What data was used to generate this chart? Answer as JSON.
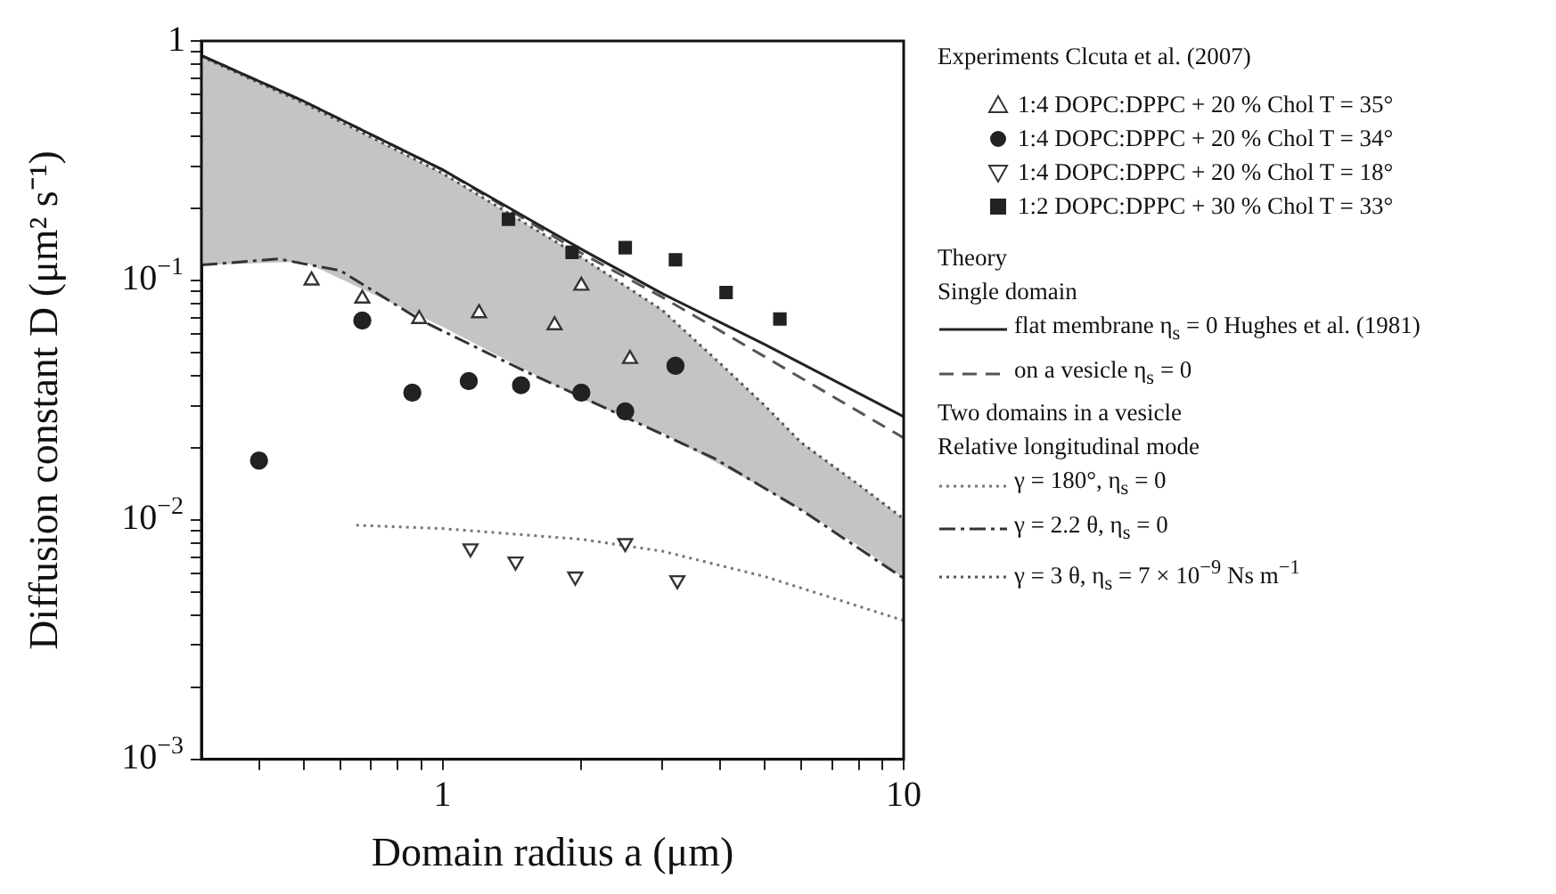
{
  "chart_data": {
    "type": "scatter",
    "xlabel": "Domain radius a (μm)",
    "ylabel": "Diffusion constant D (μm² s⁻¹)",
    "log": "xy",
    "xlim": [
      0.3,
      10
    ],
    "ylim": [
      0.001,
      1
    ],
    "xticks": [
      {
        "value": 0.4,
        "label": null
      },
      {
        "value": 0.5,
        "label": null
      },
      {
        "value": 0.6,
        "label": null
      },
      {
        "value": 0.7,
        "label": null
      },
      {
        "value": 0.8,
        "label": null
      },
      {
        "value": 0.9,
        "label": null
      },
      1,
      {
        "value": 2,
        "label": null
      },
      {
        "value": 3,
        "label": null
      },
      {
        "value": 4,
        "label": null
      },
      {
        "value": 5,
        "label": null
      },
      {
        "value": 6,
        "label": null
      },
      {
        "value": 7,
        "label": null
      },
      {
        "value": 8,
        "label": null
      },
      {
        "value": 9,
        "label": null
      },
      10
    ],
    "yticks": [
      {
        "value": 0.001,
        "label": "10$^{−3}$"
      },
      {
        "value": 0.002,
        "label": null
      },
      {
        "value": 0.003,
        "label": null
      },
      {
        "value": 0.004,
        "label": null
      },
      {
        "value": 0.005,
        "label": null
      },
      {
        "value": 0.006,
        "label": null
      },
      {
        "value": 0.007,
        "label": null
      },
      {
        "value": 0.008,
        "label": null
      },
      {
        "value": 0.009,
        "label": null
      },
      {
        "value": 0.01,
        "label": "10$^{−2}$"
      },
      {
        "value": 0.02,
        "label": null
      },
      {
        "value": 0.03,
        "label": null
      },
      {
        "value": 0.04,
        "label": null
      },
      {
        "value": 0.05,
        "label": null
      },
      {
        "value": 0.06,
        "label": null
      },
      {
        "value": 0.07,
        "label": null
      },
      {
        "value": 0.08,
        "label": null
      },
      {
        "value": 0.09,
        "label": null
      },
      {
        "value": 0.1,
        "label": "10$^{−1}$"
      },
      {
        "value": 0.2,
        "label": null
      },
      {
        "value": 0.3,
        "label": null
      },
      {
        "value": 0.4,
        "label": null
      },
      {
        "value": 0.5,
        "label": null
      },
      {
        "value": 0.6,
        "label": null
      },
      {
        "value": 0.7,
        "label": null
      },
      {
        "value": 0.8,
        "label": null
      },
      {
        "value": 0.9,
        "label": null
      },
      1
    ],
    "grid": false,
    "legend": "right",
    "annotations": [
      "Experiments Clcuta et al. (2007)",
      "Theory",
      "Single domain",
      "Two domains in a vesicle",
      "Relative longitudinal mode"
    ],
    "series": [
      {
        "name": "1:4 DOPC:DPPC + 20 % Chol T = 35°",
        "type": "scatter",
        "marker": "triangle",
        "color": "#333333",
        "x": [
          0.52,
          0.67,
          0.89,
          1.2,
          1.75,
          2.0,
          2.55
        ],
        "values": [
          0.1,
          0.084,
          0.069,
          0.073,
          0.065,
          0.095,
          0.047
        ]
      },
      {
        "name": "1:4 DOPC:DPPC + 20 % Chol T = 34°",
        "type": "scatter",
        "marker": "circle",
        "color": "#222222",
        "x": [
          0.4,
          0.67,
          0.86,
          1.14,
          1.48,
          2.0,
          2.49,
          3.2
        ],
        "values": [
          0.0177,
          0.068,
          0.034,
          0.038,
          0.0365,
          0.034,
          0.0284,
          0.044
        ]
      },
      {
        "name": "1:4 DOPC:DPPC + 20 % Chol T = 18°",
        "type": "scatter",
        "marker": "triangle_down",
        "color": "#333333",
        "x": [
          1.15,
          1.44,
          1.94,
          2.49,
          3.23
        ],
        "values": [
          0.0076,
          0.0067,
          0.0058,
          0.008,
          0.0056
        ]
      },
      {
        "name": "1:2 DOPC:DPPC + 30 % Chol T = 33°",
        "type": "scatter",
        "marker": "square",
        "color": "#222222",
        "x": [
          1.39,
          1.91,
          2.49,
          3.2,
          4.12,
          5.39
        ],
        "values": [
          0.18,
          0.131,
          0.137,
          0.122,
          0.089,
          0.069
        ]
      },
      {
        "name": "flat membrane η$_{s}$ = 0 Hughes et al. (1981)",
        "type": "line",
        "line_style": "solid",
        "color": "#222222",
        "x": [
          0.3,
          0.5,
          1,
          2,
          3,
          5,
          10
        ],
        "values": [
          0.87,
          0.56,
          0.29,
          0.135,
          0.088,
          0.054,
          0.027
        ]
      },
      {
        "name": "on a vesicle η$_{s}$ = 0",
        "type": "line",
        "line_style": "dashed",
        "color": "#555555",
        "x": [
          0.3,
          0.5,
          1,
          2,
          3,
          5,
          10
        ],
        "values": [
          0.87,
          0.56,
          0.29,
          0.13,
          0.085,
          0.048,
          0.022
        ]
      },
      {
        "name": "γ = 180°, η$_{s}$ = 0",
        "type": "line",
        "line_style": "dotted",
        "color": "#777777",
        "x": [
          0.65,
          1,
          2,
          3,
          5,
          10
        ],
        "values": [
          0.0095,
          0.0092,
          0.0083,
          0.0074,
          0.0058,
          0.0038
        ]
      },
      {
        "name": "γ = 2.2 θ, η$_{s}$ = 0",
        "type": "line",
        "line_style": "dashdot",
        "color": "#333333",
        "x": [
          0.3,
          0.44,
          0.6,
          0.9,
          1.5,
          2.2,
          3.9,
          6,
          10
        ],
        "values": [
          0.116,
          0.123,
          0.11,
          0.068,
          0.042,
          0.03,
          0.018,
          0.011,
          0.0057
        ]
      },
      {
        "name": "γ = 3 θ, η$_{s}$ = 7 × 10$^{−9}$ Ns m$^{−1}$",
        "type": "line",
        "line_style": "dotted",
        "color": "#555555",
        "x": [
          0.3,
          0.5,
          1,
          2,
          3,
          4,
          5,
          6,
          8,
          10
        ],
        "values": [
          0.86,
          0.55,
          0.28,
          0.125,
          0.075,
          0.045,
          0.03,
          0.021,
          0.014,
          0.0101
        ],
        "lower": [
          0.116,
          0.12,
          0.064,
          0.032,
          0.023,
          0.017,
          0.0135,
          0.011,
          0.0078,
          0.0057
        ],
        "upper": [
          0.86,
          0.55,
          0.28,
          0.125,
          0.075,
          0.045,
          0.03,
          0.021,
          0.014,
          0.0101
        ]
      }
    ]
  }
}
